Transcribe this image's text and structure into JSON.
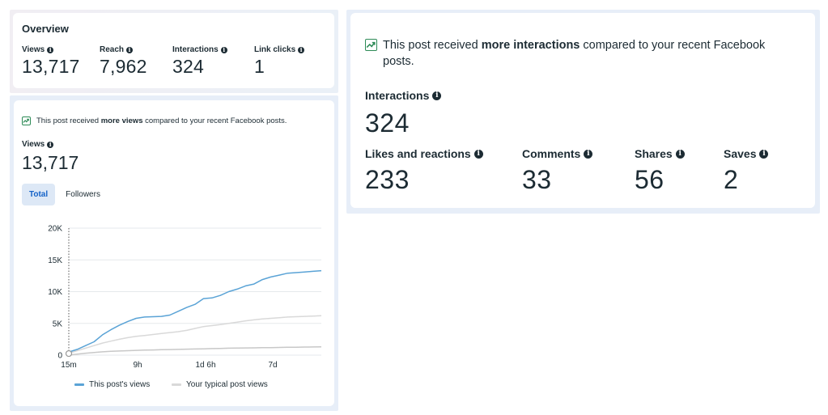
{
  "overview": {
    "title": "Overview",
    "metrics": [
      {
        "label": "Views",
        "value": "13,717"
      },
      {
        "label": "Reach",
        "value": "7,962"
      },
      {
        "label": "Interactions",
        "value": "324"
      },
      {
        "label": "Link clicks",
        "value": "1"
      }
    ]
  },
  "views_card": {
    "notice_prefix": "This post received ",
    "notice_bold": "more views",
    "notice_suffix": " compared to your recent Facebook posts.",
    "label": "Views",
    "value": "13,717",
    "tabs": [
      {
        "label": "Total",
        "active": true
      },
      {
        "label": "Followers",
        "active": false
      }
    ]
  },
  "interactions_card": {
    "notice_prefix": "This post received ",
    "notice_bold": "more interactions",
    "notice_suffix": " compared to your recent Facebook posts.",
    "label": "Interactions",
    "value": "324",
    "breakdown": [
      {
        "label": "Likes and reactions",
        "value": "233"
      },
      {
        "label": "Comments",
        "value": "33"
      },
      {
        "label": "Shares",
        "value": "56"
      },
      {
        "label": "Saves",
        "value": "2"
      }
    ]
  },
  "colors": {
    "this_post": "#5aa3d6",
    "typical_upper": "#d9d9d9",
    "typical_lower": "#c8c8c8",
    "trend_icon": "#2e8b57",
    "tab_active": "#1462c8"
  },
  "chart_data": {
    "type": "line",
    "x_ticks": [
      "15m",
      "9h",
      "1d 6h",
      "7d"
    ],
    "y_ticks": [
      "0",
      "5K",
      "10K",
      "15K",
      "20K"
    ],
    "ylim": [
      0,
      20000
    ],
    "grid": true,
    "legend_position": "bottom",
    "series": [
      {
        "name": "This post's views",
        "values": [
          500,
          900,
          1500,
          2100,
          3200,
          4000,
          4700,
          5300,
          5800,
          6000,
          6050,
          6100,
          6300,
          6900,
          7500,
          8000,
          8900,
          9000,
          9400,
          10000,
          10400,
          10900,
          11200,
          11900,
          12300,
          12600,
          12900,
          13000,
          13100,
          13200,
          13300
        ]
      },
      {
        "name": "Your typical post views",
        "values": [
          300,
          700,
          1100,
          1500,
          1900,
          2200,
          2500,
          2750,
          2950,
          3100,
          3250,
          3400,
          3550,
          3700,
          3900,
          4200,
          4500,
          4650,
          4800,
          5000,
          5200,
          5400,
          5550,
          5700,
          5800,
          5900,
          6000,
          6050,
          6100,
          6150,
          6200
        ]
      },
      {
        "name": "",
        "values": [
          0,
          150,
          300,
          420,
          520,
          600,
          650,
          700,
          750,
          800,
          820,
          850,
          880,
          910,
          940,
          970,
          1000,
          1030,
          1060,
          1090,
          1110,
          1130,
          1150,
          1170,
          1190,
          1210,
          1230,
          1250,
          1270,
          1290,
          1300
        ]
      }
    ],
    "marker_x_tick": "15m"
  }
}
